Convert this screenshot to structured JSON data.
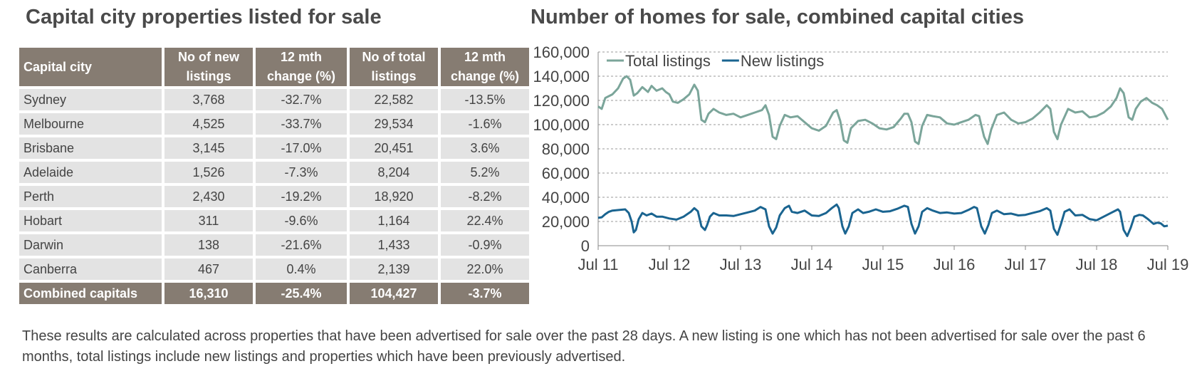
{
  "table": {
    "title": "Capital city properties listed for sale",
    "headers": [
      "Capital city",
      "No of new listings",
      "12 mth change (%)",
      "No of total listings",
      "12 mth change (%)"
    ],
    "rows": [
      [
        "Sydney",
        "3,768",
        "-32.7%",
        "22,582",
        "-13.5%"
      ],
      [
        "Melbourne",
        "4,525",
        "-33.7%",
        "29,534",
        "-1.6%"
      ],
      [
        "Brisbane",
        "3,145",
        "-17.0%",
        "20,451",
        "3.6%"
      ],
      [
        "Adelaide",
        "1,526",
        "-7.3%",
        "8,204",
        "5.2%"
      ],
      [
        "Perth",
        "2,430",
        "-19.2%",
        "18,920",
        "-8.2%"
      ],
      [
        "Hobart",
        "311",
        "-9.6%",
        "1,164",
        "22.4%"
      ],
      [
        "Darwin",
        "138",
        "-21.6%",
        "1,433",
        "-0.9%"
      ],
      [
        "Canberra",
        "467",
        "0.4%",
        "2,139",
        "22.0%"
      ]
    ],
    "total_row": [
      "Combined capitals",
      "16,310",
      "-25.4%",
      "104,427",
      "-3.7%"
    ]
  },
  "footnote": "These results are calculated across properties that have been advertised for sale over the past 28 days.  A new listing is one which has not been advertised for sale over the past 6 months, total listings include new listings and properties which have been previously advertised.",
  "colors": {
    "header_bg": "#867c72",
    "cell_bg": "#e3e3e3",
    "total_color": "#7ba59a",
    "new_color": "#1a6490"
  },
  "chart_data": {
    "type": "line",
    "title": "Number of homes for sale, combined capital cities",
    "ylim": [
      0,
      160000
    ],
    "yticks": [
      "0",
      "20,000",
      "40,000",
      "60,000",
      "80,000",
      "100,000",
      "120,000",
      "140,000",
      "160,000"
    ],
    "xticks": [
      "Jul 11",
      "Jul 12",
      "Jul 13",
      "Jul 14",
      "Jul 15",
      "Jul 16",
      "Jul 17",
      "Jul 18",
      "Jul 19"
    ],
    "xlim": [
      2011.5,
      2019.5
    ],
    "grid": true,
    "legend_position": "top-left",
    "series": [
      {
        "name": "Total listings",
        "color": "#7ba59a",
        "points": [
          [
            2011.5,
            115000
          ],
          [
            2011.55,
            113000
          ],
          [
            2011.6,
            122000
          ],
          [
            2011.7,
            125000
          ],
          [
            2011.78,
            130000
          ],
          [
            2011.85,
            138000
          ],
          [
            2011.9,
            140000
          ],
          [
            2011.95,
            137000
          ],
          [
            2012.0,
            124000
          ],
          [
            2012.05,
            126000
          ],
          [
            2012.12,
            131000
          ],
          [
            2012.2,
            127000
          ],
          [
            2012.25,
            132000
          ],
          [
            2012.32,
            128000
          ],
          [
            2012.4,
            130000
          ],
          [
            2012.45,
            127000
          ],
          [
            2012.5,
            125000
          ],
          [
            2012.55,
            119000
          ],
          [
            2012.62,
            118000
          ],
          [
            2012.7,
            121000
          ],
          [
            2012.78,
            125000
          ],
          [
            2012.85,
            133000
          ],
          [
            2012.9,
            128000
          ],
          [
            2012.95,
            104000
          ],
          [
            2013.0,
            102000
          ],
          [
            2013.05,
            109000
          ],
          [
            2013.12,
            113000
          ],
          [
            2013.2,
            110000
          ],
          [
            2013.3,
            108000
          ],
          [
            2013.4,
            109000
          ],
          [
            2013.5,
            106000
          ],
          [
            2013.6,
            108000
          ],
          [
            2013.7,
            110000
          ],
          [
            2013.8,
            112000
          ],
          [
            2013.85,
            116000
          ],
          [
            2013.9,
            108000
          ],
          [
            2013.95,
            90000
          ],
          [
            2014.0,
            88000
          ],
          [
            2014.05,
            99000
          ],
          [
            2014.12,
            108000
          ],
          [
            2014.2,
            106000
          ],
          [
            2014.3,
            107000
          ],
          [
            2014.4,
            102000
          ],
          [
            2014.5,
            97000
          ],
          [
            2014.6,
            95000
          ],
          [
            2014.7,
            99000
          ],
          [
            2014.8,
            110000
          ],
          [
            2014.85,
            112000
          ],
          [
            2014.9,
            103000
          ],
          [
            2014.95,
            87000
          ],
          [
            2015.0,
            85000
          ],
          [
            2015.05,
            97000
          ],
          [
            2015.15,
            103000
          ],
          [
            2015.25,
            104000
          ],
          [
            2015.35,
            101000
          ],
          [
            2015.45,
            97000
          ],
          [
            2015.55,
            96000
          ],
          [
            2015.65,
            98000
          ],
          [
            2015.75,
            105000
          ],
          [
            2015.8,
            109000
          ],
          [
            2015.85,
            109000
          ],
          [
            2015.9,
            102000
          ],
          [
            2015.95,
            86000
          ],
          [
            2016.0,
            84000
          ],
          [
            2016.05,
            99000
          ],
          [
            2016.12,
            108000
          ],
          [
            2016.2,
            107000
          ],
          [
            2016.3,
            106000
          ],
          [
            2016.4,
            101000
          ],
          [
            2016.5,
            100000
          ],
          [
            2016.6,
            102000
          ],
          [
            2016.7,
            104000
          ],
          [
            2016.8,
            108000
          ],
          [
            2016.85,
            107000
          ],
          [
            2016.92,
            90000
          ],
          [
            2016.97,
            84000
          ],
          [
            2017.02,
            96000
          ],
          [
            2017.1,
            108000
          ],
          [
            2017.2,
            110000
          ],
          [
            2017.3,
            104000
          ],
          [
            2017.4,
            101000
          ],
          [
            2017.5,
            102000
          ],
          [
            2017.6,
            105000
          ],
          [
            2017.7,
            110000
          ],
          [
            2017.8,
            116000
          ],
          [
            2017.85,
            113000
          ],
          [
            2017.9,
            94000
          ],
          [
            2017.95,
            88000
          ],
          [
            2018.0,
            100000
          ],
          [
            2018.1,
            113000
          ],
          [
            2018.2,
            110000
          ],
          [
            2018.3,
            111000
          ],
          [
            2018.4,
            106000
          ],
          [
            2018.5,
            107000
          ],
          [
            2018.6,
            110000
          ],
          [
            2018.7,
            115000
          ],
          [
            2018.78,
            122000
          ],
          [
            2018.83,
            130000
          ],
          [
            2018.88,
            126000
          ],
          [
            2018.95,
            106000
          ],
          [
            2019.0,
            104000
          ],
          [
            2019.05,
            113000
          ],
          [
            2019.12,
            119000
          ],
          [
            2019.2,
            122000
          ],
          [
            2019.28,
            118000
          ],
          [
            2019.35,
            116000
          ],
          [
            2019.42,
            113000
          ],
          [
            2019.5,
            104000
          ]
        ]
      },
      {
        "name": "New listings",
        "color": "#1a6490",
        "points": [
          [
            2011.5,
            23000
          ],
          [
            2011.55,
            23500
          ],
          [
            2011.6,
            26000
          ],
          [
            2011.65,
            28000
          ],
          [
            2011.7,
            29000
          ],
          [
            2011.8,
            29500
          ],
          [
            2011.88,
            30000
          ],
          [
            2011.93,
            27000
          ],
          [
            2011.97,
            20000
          ],
          [
            2012.0,
            11000
          ],
          [
            2012.03,
            13000
          ],
          [
            2012.07,
            22000
          ],
          [
            2012.12,
            27000
          ],
          [
            2012.18,
            25000
          ],
          [
            2012.25,
            26500
          ],
          [
            2012.32,
            24000
          ],
          [
            2012.4,
            24000
          ],
          [
            2012.5,
            22500
          ],
          [
            2012.6,
            21500
          ],
          [
            2012.7,
            24000
          ],
          [
            2012.8,
            28000
          ],
          [
            2012.85,
            31000
          ],
          [
            2012.9,
            28500
          ],
          [
            2012.95,
            16000
          ],
          [
            2013.0,
            13000
          ],
          [
            2013.03,
            17000
          ],
          [
            2013.07,
            24000
          ],
          [
            2013.12,
            27000
          ],
          [
            2013.2,
            25000
          ],
          [
            2013.3,
            25000
          ],
          [
            2013.4,
            24500
          ],
          [
            2013.5,
            26000
          ],
          [
            2013.6,
            27500
          ],
          [
            2013.7,
            29000
          ],
          [
            2013.78,
            32000
          ],
          [
            2013.85,
            30000
          ],
          [
            2013.9,
            16000
          ],
          [
            2013.95,
            10000
          ],
          [
            2014.0,
            15000
          ],
          [
            2014.05,
            25000
          ],
          [
            2014.12,
            31000
          ],
          [
            2014.18,
            33000
          ],
          [
            2014.22,
            28000
          ],
          [
            2014.3,
            27000
          ],
          [
            2014.4,
            29000
          ],
          [
            2014.5,
            25000
          ],
          [
            2014.6,
            24500
          ],
          [
            2014.7,
            27000
          ],
          [
            2014.78,
            31000
          ],
          [
            2014.85,
            34000
          ],
          [
            2014.88,
            31000
          ],
          [
            2014.93,
            16000
          ],
          [
            2014.97,
            10000
          ],
          [
            2015.02,
            16000
          ],
          [
            2015.07,
            27000
          ],
          [
            2015.15,
            30000
          ],
          [
            2015.22,
            27000
          ],
          [
            2015.3,
            28000
          ],
          [
            2015.4,
            30000
          ],
          [
            2015.5,
            28000
          ],
          [
            2015.6,
            28500
          ],
          [
            2015.7,
            30500
          ],
          [
            2015.8,
            33000
          ],
          [
            2015.85,
            32000
          ],
          [
            2015.9,
            18000
          ],
          [
            2015.95,
            10000
          ],
          [
            2016.0,
            16000
          ],
          [
            2016.05,
            28000
          ],
          [
            2016.12,
            31000
          ],
          [
            2016.2,
            29000
          ],
          [
            2016.3,
            27000
          ],
          [
            2016.4,
            27500
          ],
          [
            2016.5,
            26500
          ],
          [
            2016.6,
            27000
          ],
          [
            2016.7,
            29500
          ],
          [
            2016.78,
            32000
          ],
          [
            2016.82,
            31000
          ],
          [
            2016.88,
            16000
          ],
          [
            2016.93,
            10000
          ],
          [
            2016.98,
            17000
          ],
          [
            2017.03,
            27000
          ],
          [
            2017.1,
            29000
          ],
          [
            2017.2,
            26000
          ],
          [
            2017.3,
            26500
          ],
          [
            2017.4,
            25000
          ],
          [
            2017.5,
            25500
          ],
          [
            2017.6,
            27000
          ],
          [
            2017.7,
            28500
          ],
          [
            2017.8,
            31000
          ],
          [
            2017.85,
            29000
          ],
          [
            2017.9,
            14000
          ],
          [
            2017.95,
            9000
          ],
          [
            2018.0,
            18000
          ],
          [
            2018.05,
            28000
          ],
          [
            2018.12,
            30000
          ],
          [
            2018.2,
            25000
          ],
          [
            2018.3,
            25500
          ],
          [
            2018.4,
            22000
          ],
          [
            2018.5,
            21000
          ],
          [
            2018.6,
            24000
          ],
          [
            2018.7,
            27000
          ],
          [
            2018.8,
            30000
          ],
          [
            2018.83,
            28000
          ],
          [
            2018.88,
            13000
          ],
          [
            2018.93,
            8000
          ],
          [
            2018.98,
            15000
          ],
          [
            2019.03,
            24000
          ],
          [
            2019.1,
            25500
          ],
          [
            2019.15,
            25000
          ],
          [
            2019.22,
            22000
          ],
          [
            2019.3,
            18000
          ],
          [
            2019.35,
            19000
          ],
          [
            2019.4,
            18500
          ],
          [
            2019.45,
            16000
          ],
          [
            2019.5,
            16500
          ]
        ]
      }
    ]
  }
}
